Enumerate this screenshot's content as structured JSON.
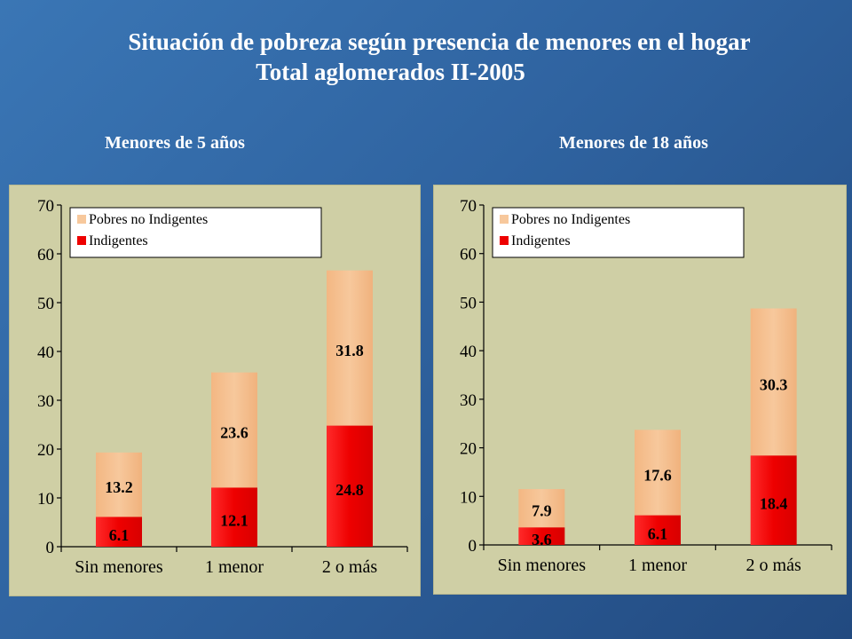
{
  "header": {
    "title_line1": "Situación de pobreza según presencia de menores en el hogar",
    "title_line2": "Total aglomerados II-2005"
  },
  "colors": {
    "indigentes": "#ee0000",
    "pobres_no_indigentes": "#f7c89c"
  },
  "chart_data": [
    {
      "type": "bar",
      "stacked": true,
      "title": "Menores de 5 años",
      "categories": [
        "Sin menores",
        "1 menor",
        "2 o más"
      ],
      "series": [
        {
          "name": "Indigentes",
          "values": [
            6.1,
            12.1,
            24.8
          ]
        },
        {
          "name": "Pobres no Indigentes",
          "values": [
            13.2,
            23.6,
            31.8
          ]
        }
      ],
      "data_labels": [
        [
          "6.1",
          "12.1",
          "24.8"
        ],
        [
          "13.2",
          "23.6",
          "31.8"
        ]
      ],
      "ylim": [
        0,
        70
      ],
      "yticks": [
        "0",
        "10",
        "20",
        "30",
        "40",
        "50",
        "60",
        "70"
      ],
      "legend": "top-left",
      "legend_order": [
        "Pobres no Indigentes",
        "Indigentes"
      ],
      "grid": false
    },
    {
      "type": "bar",
      "stacked": true,
      "title": "Menores de 18 años",
      "categories": [
        "Sin menores",
        "1 menor",
        "2 o más"
      ],
      "series": [
        {
          "name": "Indigentes",
          "values": [
            3.6,
            6.1,
            18.4
          ]
        },
        {
          "name": "Pobres no Indigentes",
          "values": [
            7.9,
            17.6,
            30.3
          ]
        }
      ],
      "data_labels": [
        [
          "3.6",
          "6.1",
          "18.4"
        ],
        [
          "7.9",
          "17.6",
          "30.3"
        ]
      ],
      "ylim": [
        0,
        70
      ],
      "yticks": [
        "0",
        "10",
        "20",
        "30",
        "40",
        "50",
        "60",
        "70"
      ],
      "legend": "top-left",
      "legend_order": [
        "Pobres no Indigentes",
        "Indigentes"
      ],
      "grid": false
    }
  ]
}
